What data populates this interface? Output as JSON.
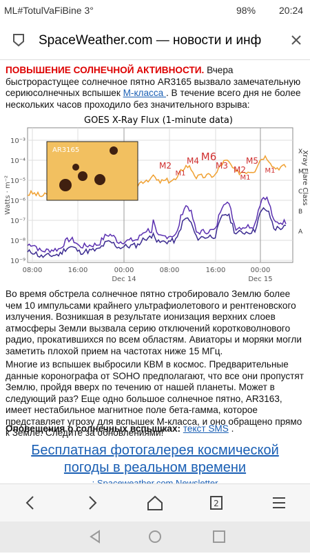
{
  "status_bar": {
    "carrier": "ML#TotulVaFiBine 3°",
    "battery": "98%",
    "time": "20:24"
  },
  "url_bar": {
    "title": "SpaceWeather.com — новости и инф"
  },
  "article": {
    "intro": {
      "headline": "ПОВЫШЕНИЕ СОЛНЕЧНОЙ АКТИВНОСТИ.",
      "text1": " Вчера быстрорастущее солнечное пятно AR3165 вызвало замечательную сериюсолнечных вспышек ",
      "link": " М-класса ",
      "text2": ". В течение всего дня не более нескольких часов проходило без значительного взрыва:"
    },
    "figure": {
      "title": "GOES X-Ray Flux (1-minute data)",
      "y_axis_label": "Watts · m⁻²",
      "right_axis_label": "Xray Flare Class",
      "y_tick_labels": [
        "10⁻³",
        "10⁻⁴",
        "10⁻⁵",
        "10⁻⁶",
        "10⁻⁷",
        "10⁻⁸",
        "10⁻⁹"
      ],
      "classes": [
        "X",
        "M",
        "C",
        "B",
        "A"
      ],
      "x_tick_labels": [
        "08:00",
        "16:00",
        "00:00",
        "08:00",
        "16:00",
        "00:00"
      ],
      "date_labels": [
        "Dec 14",
        "Dec 15"
      ],
      "inset_label": "AR3165",
      "flare_labels": [
        "M2",
        "M1",
        "M4",
        "M6",
        "M3",
        "M2",
        "M1",
        "M5",
        "M1"
      ]
    },
    "paragraph2": "Во время обстрела солнечное пятно стробировало Землю более чем 10 импульсами крайнего ультрафиолетового и рентгеновского излучения. Возникшая в результате ионизация верхних слоев атмосферы Земли вызвала серию отключений коротковолнового радио, прокатившихся по всем областям. Авиаторы и моряки могли заметить плохой прием на частотах ниже 15 МГц.",
    "paragraph3": "Многие из вспышек выбросили КВМ в космос. Предварительные данные коронографа от SOHO предполагают, что все они пропустят Землю, пройдя вверх по течению от нашей планеты. Может в следующий раз? Еще одно большое солнечное пятно, AR3163, имеет нестабильное магнитное поле бета-гамма, которое представляет угрозу для вспышек М-класса, и оно обращено прямо к Земле. Следите за обновлениями!",
    "alerts": {
      "label": "Оповещения о солнечных вспышках:",
      "link": "текст SMS",
      "tail": " ."
    },
    "gallery_link": "Бесплатная фотогалерея космической погоды в реальном времени",
    "newsletter": ": Spaceweather.com Newsletter"
  },
  "nav": {
    "tabs": "2"
  }
}
